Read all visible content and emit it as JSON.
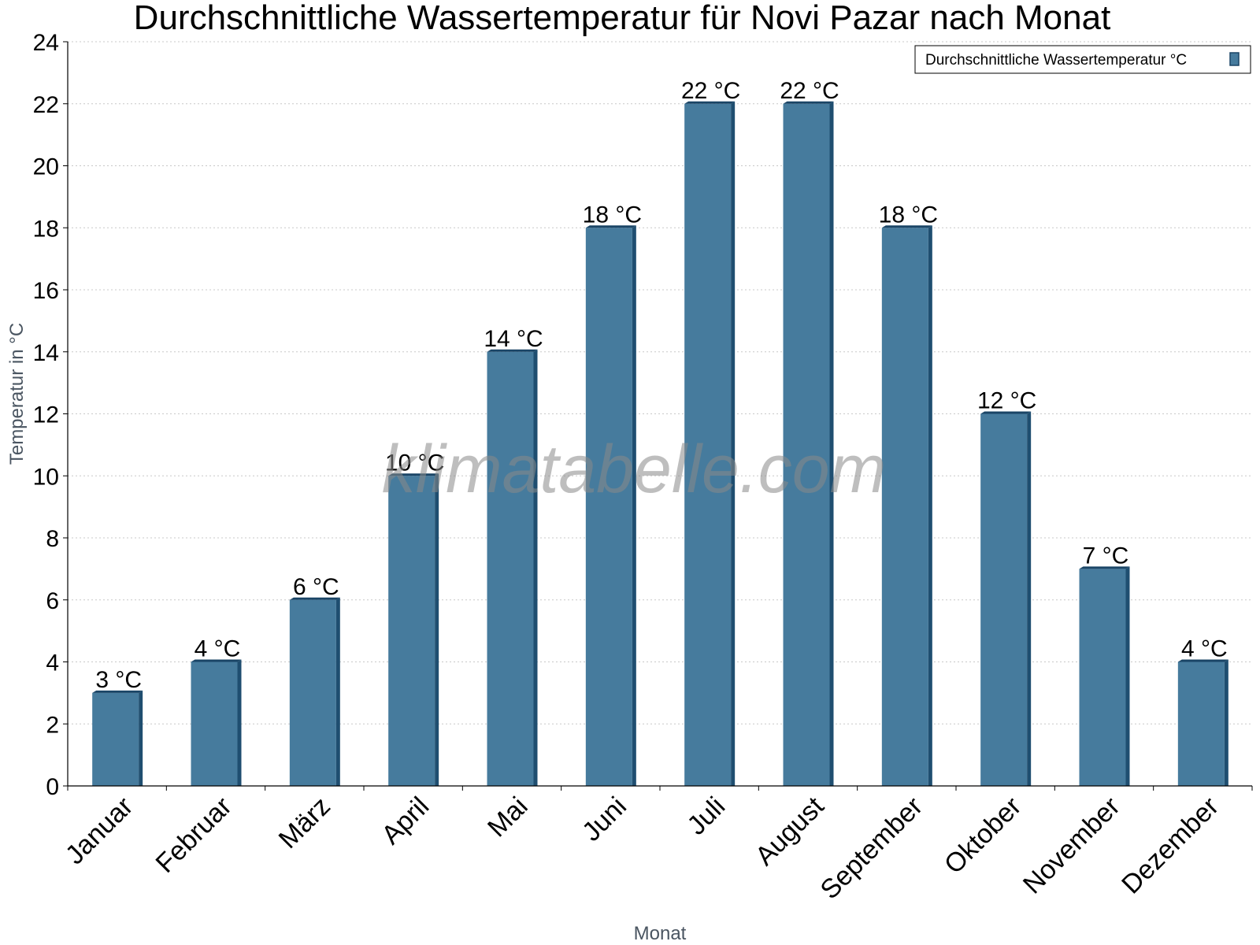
{
  "chart_data": {
    "type": "bar",
    "title": "Durchschnittliche Wassertemperatur für Novi Pazar nach Monat",
    "xlabel": "Monat",
    "ylabel": "Temperatur in °C",
    "categories": [
      "Januar",
      "Februar",
      "März",
      "April",
      "Mai",
      "Juni",
      "Juli",
      "August",
      "September",
      "Oktober",
      "November",
      "Dezember"
    ],
    "series": [
      {
        "name": "Durchschnittliche Wassertemperatur °C",
        "values": [
          3,
          4,
          6,
          10,
          14,
          18,
          22,
          22,
          18,
          12,
          7,
          4
        ],
        "data_labels": [
          "3 °C",
          "4 °C",
          "6 °C",
          "10 °C",
          "14 °C",
          "18 °C",
          "22 °C",
          "22 °C",
          "18 °C",
          "12 °C",
          "7 °C",
          "4 °C"
        ]
      }
    ],
    "ylim": [
      0,
      24
    ],
    "yticks": [
      0,
      2,
      4,
      6,
      8,
      10,
      12,
      14,
      16,
      18,
      20,
      22,
      24
    ],
    "grid": true,
    "legend_position": "top-right",
    "colors": {
      "bar": "#467b9d",
      "bar_side": "#1f4e70",
      "bar_top": "#1a4566",
      "grid": "#c8c8c8"
    },
    "watermark": "klimatabelle.com"
  }
}
